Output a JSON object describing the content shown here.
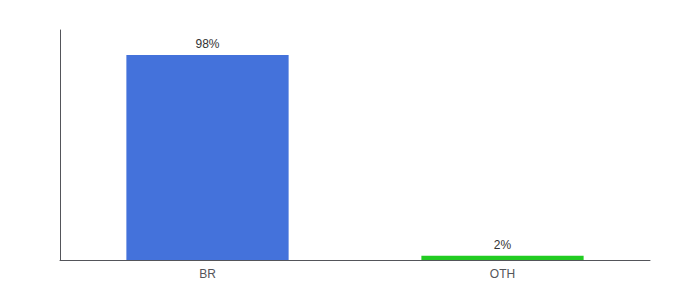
{
  "chart_data": {
    "type": "bar",
    "categories": [
      "BR",
      "OTH"
    ],
    "values": [
      98,
      2
    ],
    "value_labels": [
      "98%",
      "2%"
    ],
    "data_labels": true,
    "colors": [
      "#4472db",
      "#22cc22"
    ],
    "ylim": [
      0,
      110
    ],
    "yticks": [],
    "tick_labels": "x",
    "grid": false
  }
}
